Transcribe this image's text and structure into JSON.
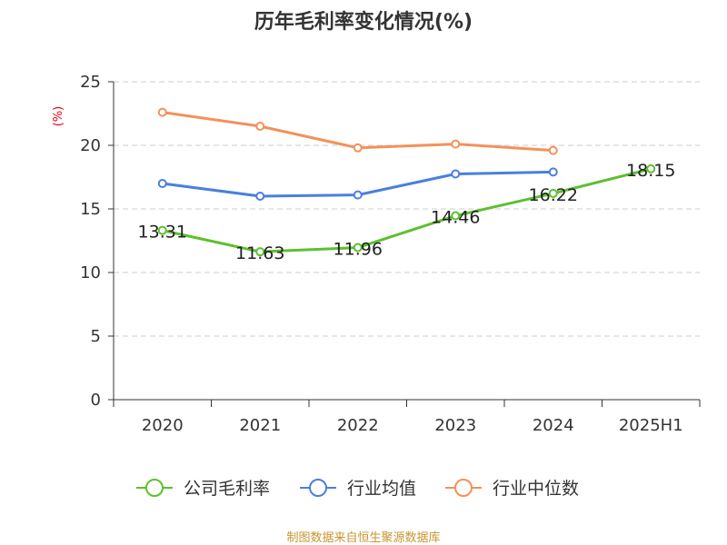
{
  "chart_data": {
    "type": "line",
    "title": "历年毛利率变化情况(%)",
    "ylabel": "(%)",
    "categories": [
      "2020",
      "2021",
      "2022",
      "2023",
      "2024",
      "2025H1"
    ],
    "ylim": [
      0,
      25
    ],
    "yticks": [
      0,
      5,
      10,
      15,
      20,
      25
    ],
    "grid": true,
    "legend_position": "bottom",
    "series": [
      {
        "name": "公司毛利率",
        "color": "#5cc02f",
        "values": [
          13.31,
          11.63,
          11.96,
          14.46,
          16.22,
          18.15
        ],
        "labels": [
          "13.31",
          "11.63",
          "11.96",
          "14.46",
          "16.22",
          "18.15"
        ]
      },
      {
        "name": "行业均值",
        "color": "#4a7fde",
        "values": [
          17.0,
          16.0,
          16.1,
          17.75,
          17.9,
          null
        ]
      },
      {
        "name": "行业中位数",
        "color": "#f4905a",
        "values": [
          22.6,
          21.5,
          19.8,
          20.1,
          19.6,
          null
        ]
      }
    ]
  },
  "footer": {
    "source": "制图数据来自恒生聚源数据库"
  }
}
